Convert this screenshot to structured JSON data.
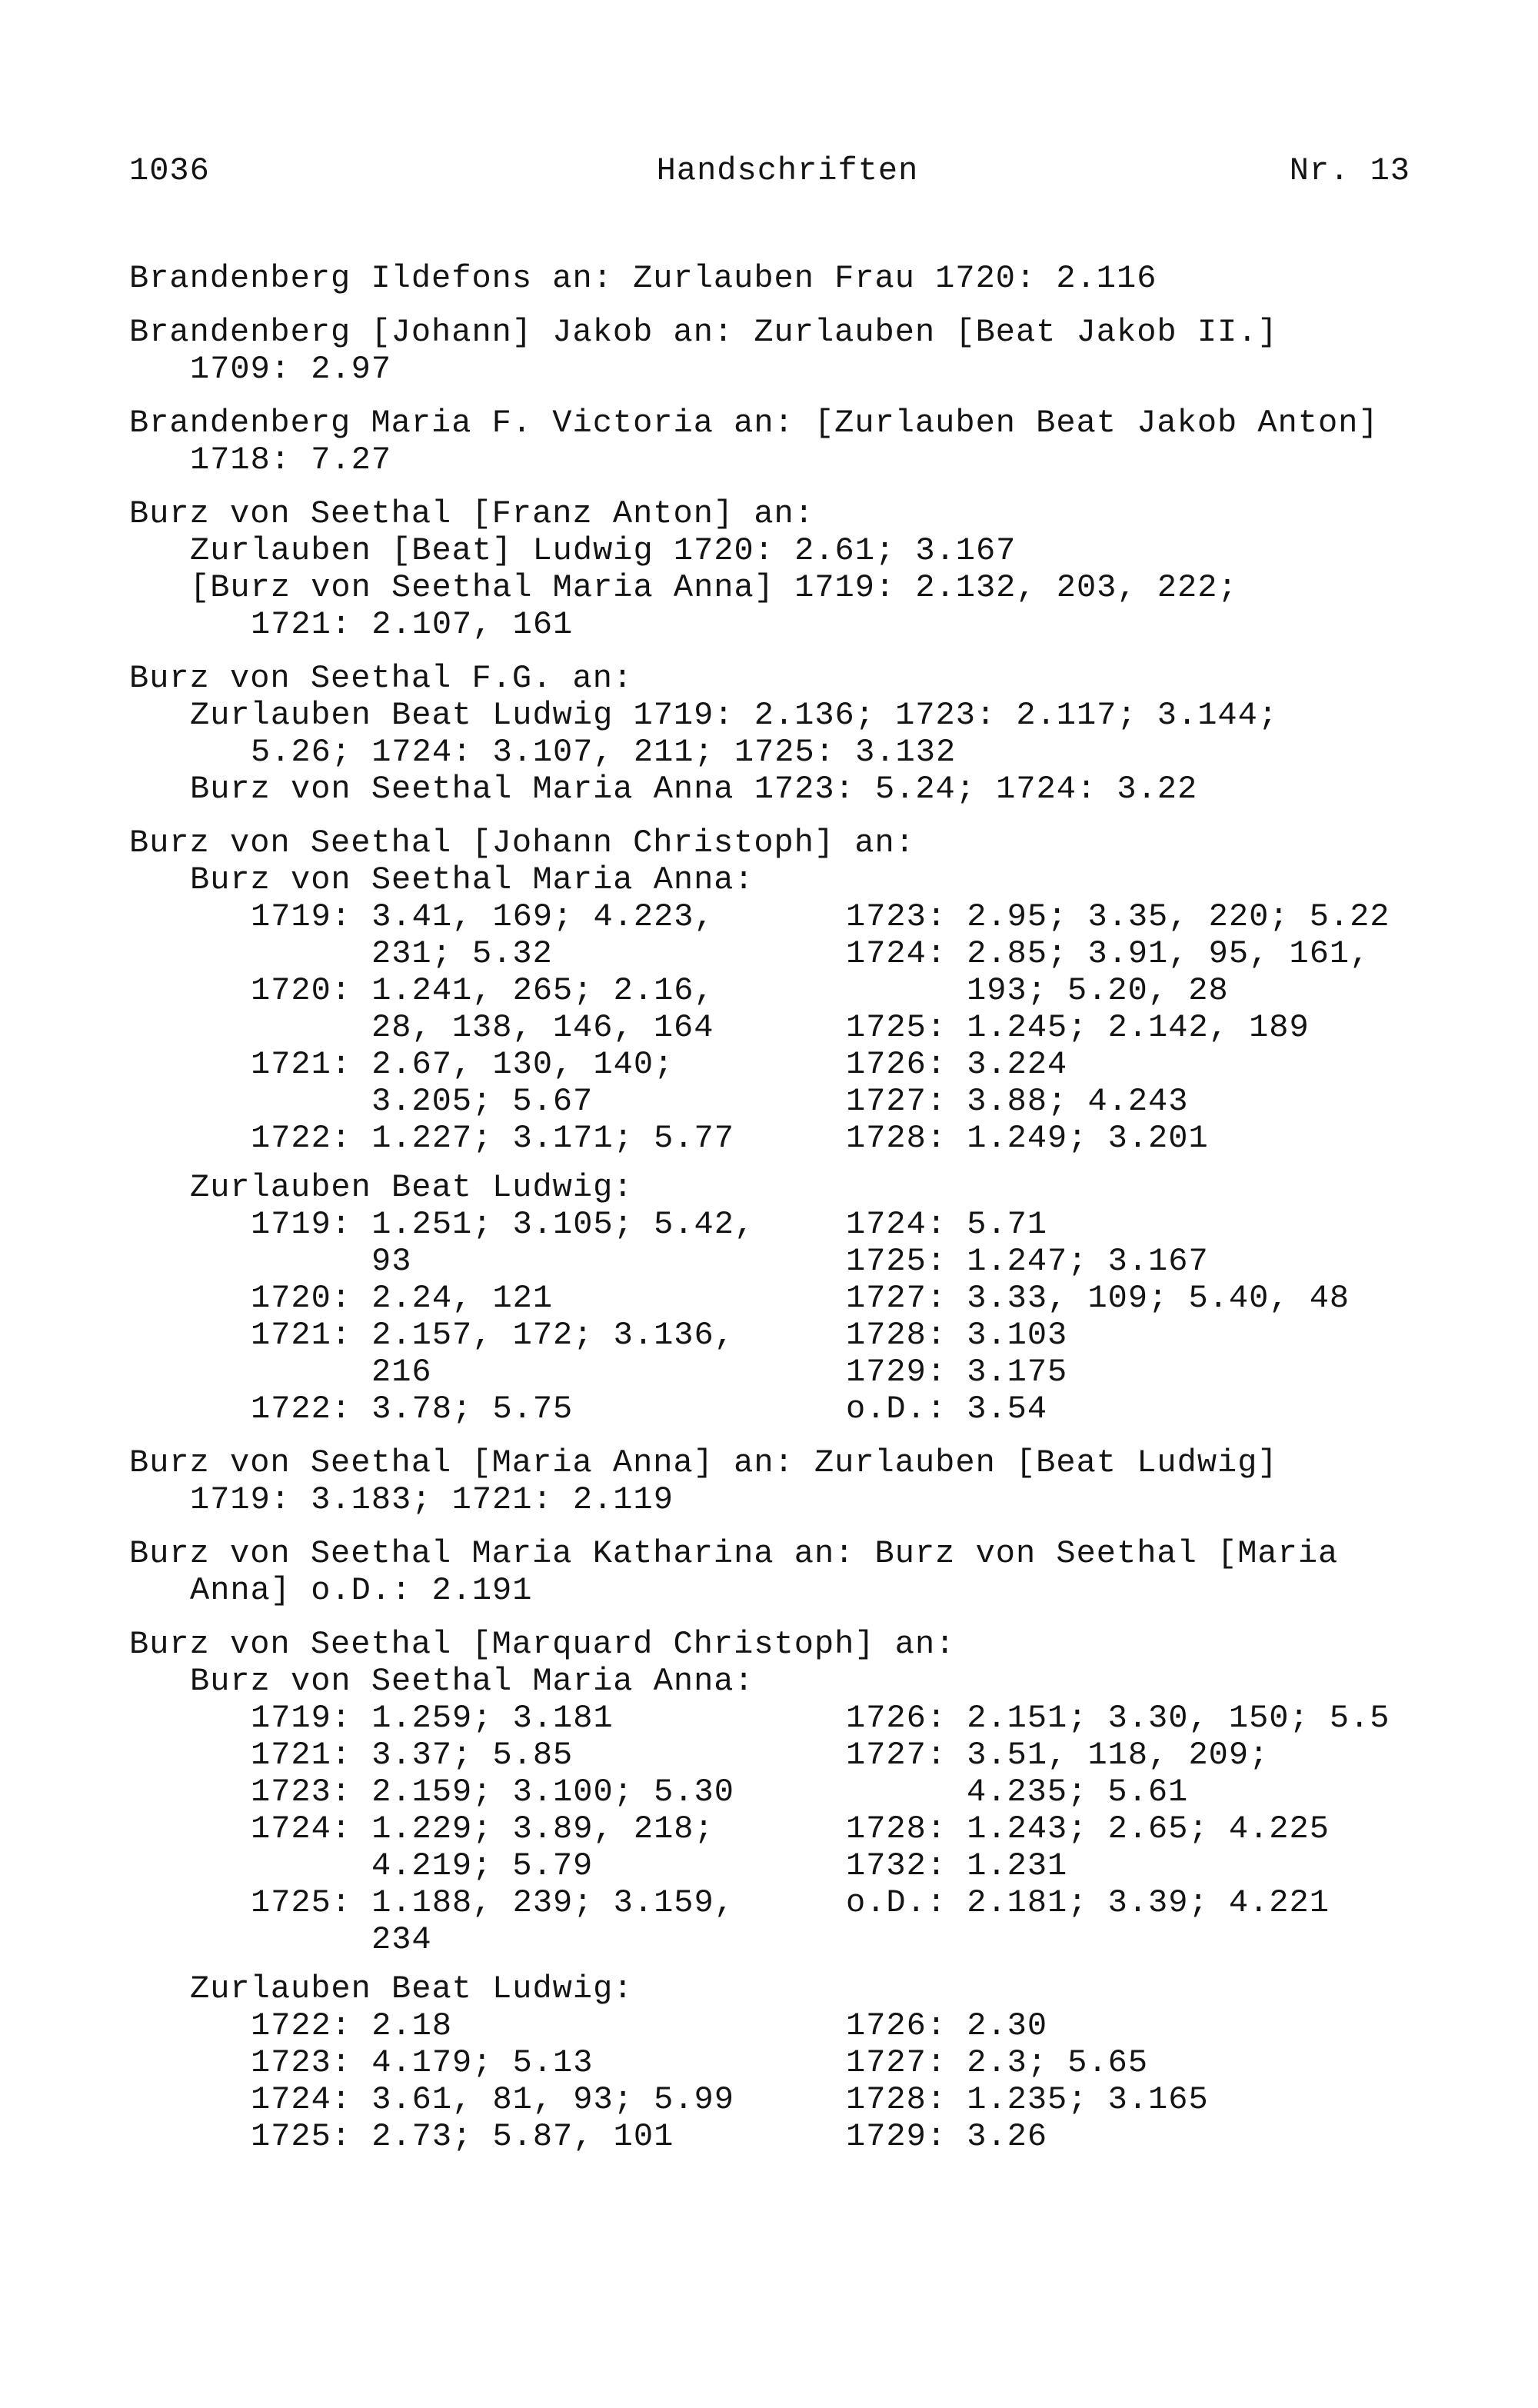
{
  "header": {
    "page_number": "1036",
    "title": "Handschriften",
    "issue": "Nr. 13"
  },
  "entries": [
    {
      "blocks": [
        {
          "type": "line",
          "level": 0,
          "text": "Brandenberg Ildefons an: Zurlauben Frau 1720: 2.116"
        }
      ]
    },
    {
      "blocks": [
        {
          "type": "line",
          "level": 0,
          "text": "Brandenberg [Johann] Jakob an: Zurlauben [Beat Jakob II.]"
        },
        {
          "type": "line",
          "level": 1,
          "text": "1709: 2.97"
        }
      ]
    },
    {
      "blocks": [
        {
          "type": "line",
          "level": 0,
          "text": "Brandenberg Maria F. Victoria an: [Zurlauben Beat Jakob Anton]"
        },
        {
          "type": "line",
          "level": 1,
          "text": "1718: 7.27"
        }
      ]
    },
    {
      "blocks": [
        {
          "type": "line",
          "level": 0,
          "text": "Burz von Seethal [Franz Anton] an:"
        },
        {
          "type": "line",
          "level": 1,
          "text": "Zurlauben [Beat] Ludwig 1720: 2.61; 3.167"
        },
        {
          "type": "line",
          "level": 1,
          "text": "[Burz von Seethal Maria Anna] 1719: 2.132, 203, 222;"
        },
        {
          "type": "line",
          "level": 2,
          "text": "1721: 2.107, 161"
        }
      ]
    },
    {
      "blocks": [
        {
          "type": "line",
          "level": 0,
          "text": "Burz von Seethal F.G. an:"
        },
        {
          "type": "line",
          "level": 1,
          "text": "Zurlauben Beat Ludwig 1719: 2.136; 1723: 2.117; 3.144;"
        },
        {
          "type": "line",
          "level": 2,
          "text": "5.26; 1724: 3.107, 211; 1725: 3.132"
        },
        {
          "type": "line",
          "level": 1,
          "text": "Burz von Seethal Maria Anna 1723: 5.24; 1724: 3.22"
        }
      ]
    },
    {
      "blocks": [
        {
          "type": "line",
          "level": 0,
          "text": "Burz von Seethal [Johann Christoph] an:"
        },
        {
          "type": "line",
          "level": 1,
          "text": "Burz von Seethal Maria Anna:"
        },
        {
          "type": "columns",
          "left": [
            {
              "text": "1719: 3.41, 169; 4.223,",
              "cont": false
            },
            {
              "text": "231; 5.32",
              "cont": true
            },
            {
              "text": "1720: 1.241, 265; 2.16,",
              "cont": false
            },
            {
              "text": "28, 138, 146, 164",
              "cont": true
            },
            {
              "text": "1721: 2.67, 130, 140;",
              "cont": false
            },
            {
              "text": "3.205; 5.67",
              "cont": true
            },
            {
              "text": "1722: 1.227; 3.171; 5.77",
              "cont": false
            }
          ],
          "right": [
            {
              "text": "1723: 2.95; 3.35, 220; 5.22",
              "cont": false
            },
            {
              "text": "1724: 2.85; 3.91, 95, 161,",
              "cont": false
            },
            {
              "text": "193; 5.20, 28",
              "cont": true
            },
            {
              "text": "1725: 1.245; 2.142, 189",
              "cont": false
            },
            {
              "text": "1726: 3.224",
              "cont": false
            },
            {
              "text": "1727: 3.88; 4.243",
              "cont": false
            },
            {
              "text": "1728: 1.249; 3.201",
              "cont": false
            }
          ]
        },
        {
          "type": "line",
          "level": 1,
          "text": "Zurlauben Beat Ludwig:",
          "gap_above": true
        },
        {
          "type": "columns",
          "left": [
            {
              "text": "1719: 1.251; 3.105; 5.42,",
              "cont": false
            },
            {
              "text": "93",
              "cont": true
            },
            {
              "text": "1720: 2.24, 121",
              "cont": false
            },
            {
              "text": "1721: 2.157, 172; 3.136,",
              "cont": false
            },
            {
              "text": "216",
              "cont": true
            },
            {
              "text": "1722: 3.78; 5.75",
              "cont": false
            }
          ],
          "right": [
            {
              "text": "1724: 5.71",
              "cont": false
            },
            {
              "text": "1725: 1.247; 3.167",
              "cont": false
            },
            {
              "text": "1727: 3.33, 109; 5.40, 48",
              "cont": false
            },
            {
              "text": "1728: 3.103",
              "cont": false
            },
            {
              "text": "1729: 3.175",
              "cont": false
            },
            {
              "text": "o.D.: 3.54",
              "cont": false
            }
          ]
        }
      ]
    },
    {
      "blocks": [
        {
          "type": "line",
          "level": 0,
          "text": "Burz von Seethal [Maria Anna] an: Zurlauben [Beat Ludwig]"
        },
        {
          "type": "line",
          "level": 1,
          "text": "1719: 3.183; 1721: 2.119"
        }
      ]
    },
    {
      "blocks": [
        {
          "type": "line",
          "level": 0,
          "text": "Burz von Seethal Maria Katharina an: Burz von Seethal [Maria"
        },
        {
          "type": "line",
          "level": 1,
          "text": "Anna] o.D.: 2.191"
        }
      ]
    },
    {
      "blocks": [
        {
          "type": "line",
          "level": 0,
          "text": "Burz von Seethal [Marquard Christoph] an:"
        },
        {
          "type": "line",
          "level": 1,
          "text": "Burz von Seethal Maria Anna:"
        },
        {
          "type": "columns",
          "left": [
            {
              "text": "1719: 1.259; 3.181",
              "cont": false
            },
            {
              "text": "1721: 3.37; 5.85",
              "cont": false
            },
            {
              "text": "1723: 2.159; 3.100; 5.30",
              "cont": false
            },
            {
              "text": "1724: 1.229; 3.89, 218;",
              "cont": false
            },
            {
              "text": "4.219; 5.79",
              "cont": true
            },
            {
              "text": "1725: 1.188, 239; 3.159,",
              "cont": false
            },
            {
              "text": "234",
              "cont": true
            }
          ],
          "right": [
            {
              "text": "1726: 2.151; 3.30, 150; 5.5",
              "cont": false
            },
            {
              "text": "1727: 3.51, 118, 209;",
              "cont": false
            },
            {
              "text": "4.235; 5.61",
              "cont": true
            },
            {
              "text": "1728: 1.243; 2.65; 4.225",
              "cont": false
            },
            {
              "text": "1732: 1.231",
              "cont": false
            },
            {
              "text": "o.D.: 2.181; 3.39; 4.221",
              "cont": false
            }
          ]
        },
        {
          "type": "line",
          "level": 1,
          "text": "Zurlauben Beat Ludwig:",
          "gap_above": true
        },
        {
          "type": "columns",
          "left": [
            {
              "text": "1722: 2.18",
              "cont": false
            },
            {
              "text": "1723: 4.179; 5.13",
              "cont": false
            },
            {
              "text": "1724: 3.61, 81, 93; 5.99",
              "cont": false
            },
            {
              "text": "1725: 2.73; 5.87, 101",
              "cont": false
            }
          ],
          "right": [
            {
              "text": "1726: 2.30",
              "cont": false
            },
            {
              "text": "1727: 2.3; 5.65",
              "cont": false
            },
            {
              "text": "1728: 1.235; 3.165",
              "cont": false
            },
            {
              "text": "1729: 3.26",
              "cont": false
            }
          ]
        }
      ]
    }
  ]
}
